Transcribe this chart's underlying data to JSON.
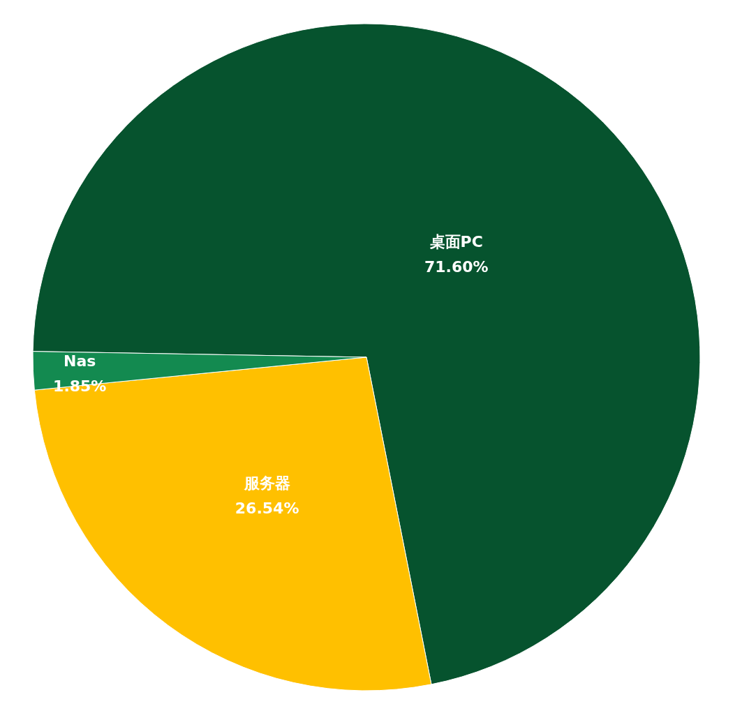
{
  "chart_data": {
    "type": "pie",
    "categories": [
      "桌面PC",
      "服务器",
      "Nas"
    ],
    "values": [
      71.6,
      26.54,
      1.85
    ],
    "value_labels": [
      "71.60%",
      "26.54%",
      "1.85%"
    ],
    "colors": [
      "#06532e",
      "#ffc000",
      "#138a50"
    ]
  }
}
